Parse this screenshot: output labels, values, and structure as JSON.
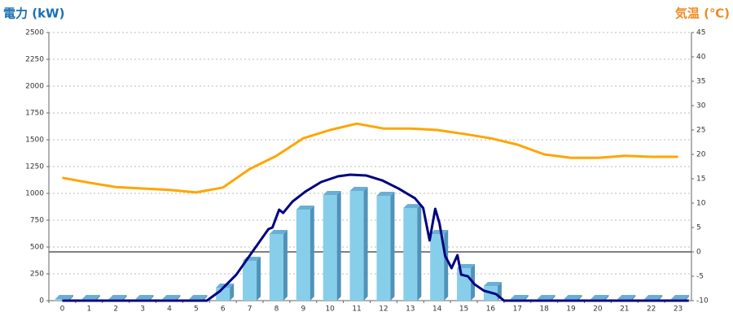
{
  "chart_data": {
    "type": "bar-line",
    "y_title": "電力 (kW)",
    "y2_title": "気温 (℃)",
    "categories": [
      "0",
      "1",
      "2",
      "3",
      "4",
      "5",
      "6",
      "7",
      "8",
      "9",
      "10",
      "11",
      "12",
      "13",
      "14",
      "15",
      "16",
      "17",
      "18",
      "19",
      "20",
      "21",
      "22",
      "23"
    ],
    "ylim": [
      0,
      2500
    ],
    "yticks": [
      0,
      250,
      500,
      750,
      1000,
      1250,
      1500,
      1750,
      2000,
      2250,
      2500
    ],
    "y2lim": [
      -10,
      45
    ],
    "y2ticks": [
      -10,
      -5,
      0,
      5,
      10,
      15,
      20,
      25,
      30,
      35,
      40,
      45
    ],
    "grid": true,
    "bars": {
      "color": "#87ceeb",
      "values": [
        0,
        0,
        0,
        0,
        0,
        0,
        106,
        356,
        606,
        833,
        970,
        1008,
        962,
        848,
        606,
        288,
        121,
        0,
        0,
        0,
        0,
        0,
        0,
        0
      ]
    },
    "power_line": {
      "color": "#000080",
      "x": [
        0,
        5.4,
        5.9,
        6.5,
        7.1,
        7.7,
        7.85,
        8.1,
        8.25,
        8.6,
        9.07,
        9.67,
        10.3,
        10.75,
        11.35,
        11.95,
        12.56,
        13.17,
        13.48,
        13.72,
        13.93,
        14.09,
        14.3,
        14.54,
        14.76,
        14.9,
        15.15,
        15.4,
        15.76,
        16.2,
        16.5,
        23.4
      ],
      "values": [
        0,
        0,
        91,
        242,
        455,
        667,
        682,
        848,
        818,
        924,
        1015,
        1106,
        1159,
        1174,
        1167,
        1121,
        1045,
        955,
        864,
        561,
        856,
        720,
        417,
        303,
        424,
        242,
        227,
        152,
        91,
        61,
        0,
        0
      ]
    },
    "temperature": {
      "color": "#ffa500",
      "axis": "y2",
      "values": [
        15.2,
        14.2,
        13.3,
        13,
        12.7,
        12.2,
        13.2,
        17,
        19.7,
        23.3,
        25,
        26.3,
        25.3,
        25.3,
        25,
        24.2,
        23.3,
        22,
        20,
        19.3,
        19.3,
        19.7,
        19.5,
        19.5
      ]
    }
  }
}
